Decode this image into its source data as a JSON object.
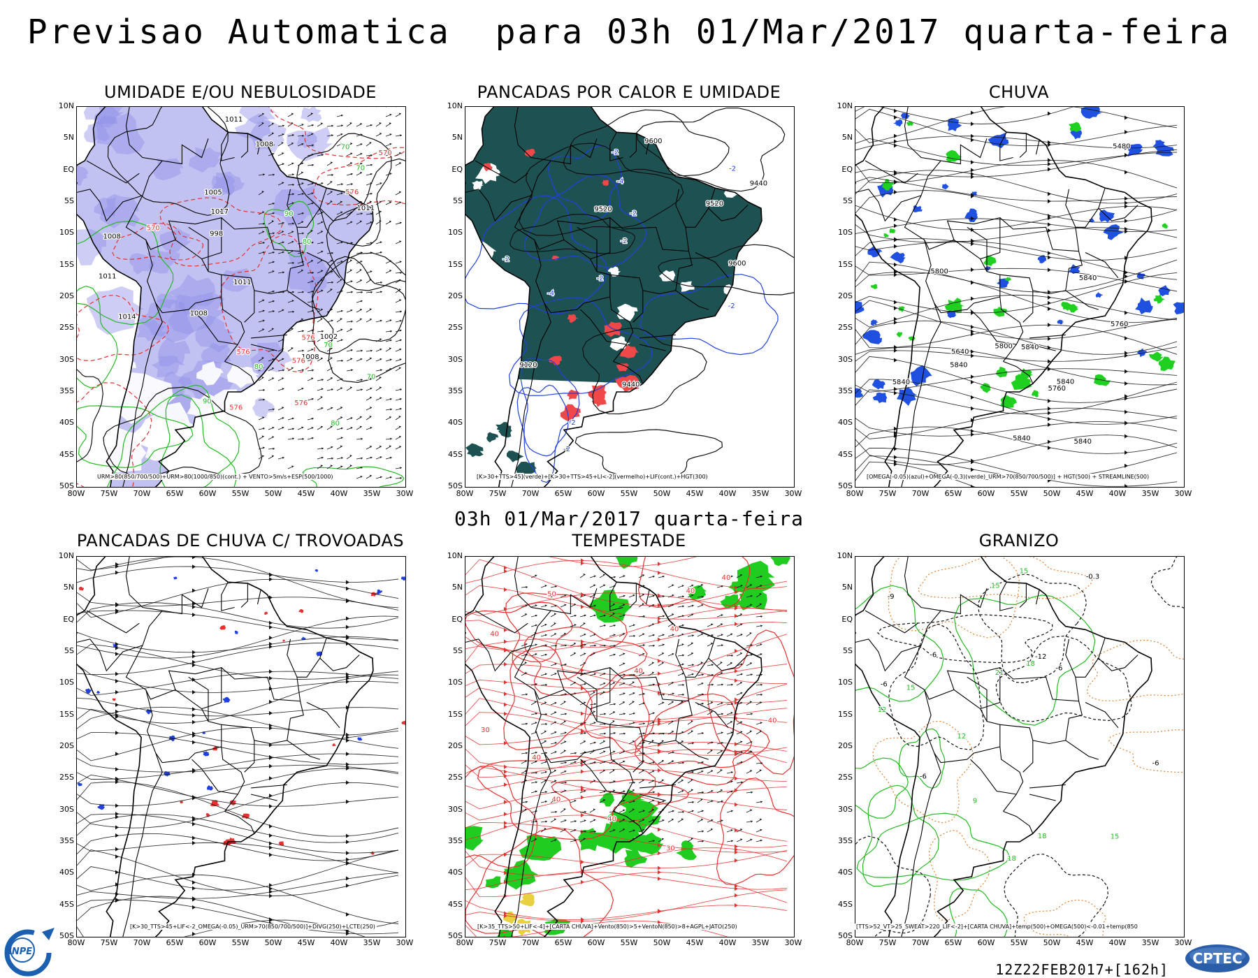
{
  "header": {
    "title": "Previsao Automatica  para 03h 01/Mar/2017 quarta-feira",
    "subtitle": "03h 01/Mar/2017 quarta-feira"
  },
  "axes": {
    "lat_labels": [
      "10N",
      "5N",
      "EQ",
      "5S",
      "10S",
      "15S",
      "20S",
      "25S",
      "30S",
      "35S",
      "40S",
      "45S",
      "50S"
    ],
    "lon_labels": [
      "80W",
      "75W",
      "70W",
      "65W",
      "60W",
      "55W",
      "50W",
      "45W",
      "40W",
      "35W",
      "30W"
    ]
  },
  "panels": [
    {
      "id": "umidade",
      "title": "UMIDADE E/OU NEBULOSIDADE",
      "caption": "URM>80(850/700/500)+URM>80(1000/850)(cont.) + VENTO>5m/s+ESP(500/1000)",
      "contour_labels": [
        "1011",
        "1011",
        "1008",
        "1008",
        "1005",
        "1008",
        "1011",
        "1014",
        "1017",
        "1011",
        "1008",
        "1002",
        "998",
        "576",
        "576",
        "576",
        "576",
        "570",
        "576",
        "576",
        "570",
        "70",
        "80",
        "90",
        "70",
        "80",
        "90",
        "70",
        "80",
        "70"
      ]
    },
    {
      "id": "pancadas-calor",
      "title": "PANCADAS POR CALOR E UMIDADE",
      "caption": "[K>30+TTS>45](verde)+[K>30+TTS>45+LI<-2](vermelho)+LIF(cont.)+HGT(300)",
      "contour_labels": [
        "9600",
        "9520",
        "9440",
        "9120",
        "9600",
        "9520",
        "9440",
        "-2",
        "-2",
        "-2",
        "-4",
        "-2",
        "-2",
        "-2",
        "-2",
        "-4",
        "-2",
        "-2"
      ]
    },
    {
      "id": "chuva",
      "title": "CHUVA",
      "caption": "[OMEGA(-0.05)(azul)+OMEGA(-0.3)(verde)_URM>70(850/700/500)] + HGT(500) + STREAMLINE(500)",
      "contour_labels": [
        "5840",
        "5840",
        "5840",
        "5840",
        "5800",
        "5760",
        "5800",
        "5760",
        "5840",
        "5840",
        "5840",
        "5640",
        "5480"
      ]
    },
    {
      "id": "trovoadas",
      "title": "PANCADAS DE CHUVA C/ TROVOADAS",
      "caption": "[K>30_TTS>45+LIF<-2_OMEGA(-0.05)_URM>70(850/700/500)]+DIVG(250)+LCTE(250)",
      "contour_labels": []
    },
    {
      "id": "tempestade",
      "title": "TEMPESTADE",
      "caption": "[K>35_TTS>50+LIF<-4]+[CARTA CHUVA]+Vento(850)>5+VentoN(850)>8+AGPL+JATO(250)",
      "contour_labels": [
        "40",
        "40",
        "40",
        "30",
        "50",
        "40",
        "40",
        "40",
        "30",
        "40",
        "40",
        "40"
      ]
    },
    {
      "id": "granizo",
      "title": "GRANIZO",
      "caption": "[TTS>52_VT>25_SWEAT>220_LIF<-2]+[CARTA CHUVA]+temp(500)+OMEGA(500)<-0.01+temp(850",
      "contour_labels": [
        "15",
        "18",
        "18",
        "15",
        "12",
        "15",
        "18",
        "21",
        "15",
        "12",
        "9",
        "-6",
        "-6",
        "-6",
        "-6",
        "-6",
        "-9",
        "-12",
        "-0.3"
      ]
    }
  ],
  "footer": {
    "run": "12Z22FEB2017+[162h]",
    "logo_left": "INPE",
    "logo_right": "CPTEC"
  },
  "colors": {
    "contour_green": "#22bb22",
    "contour_red": "#e83030",
    "contour_blue": "#2040e0",
    "humidity_purple": "#9090e8",
    "heat_teal": "#1e5252",
    "heat_red": "#f04848",
    "rain_blue": "#2050e0",
    "rain_green": "#20d020",
    "storm_green": "#20cc20",
    "storm_yellow": "#e8d040",
    "hail_orange": "#e08030"
  }
}
